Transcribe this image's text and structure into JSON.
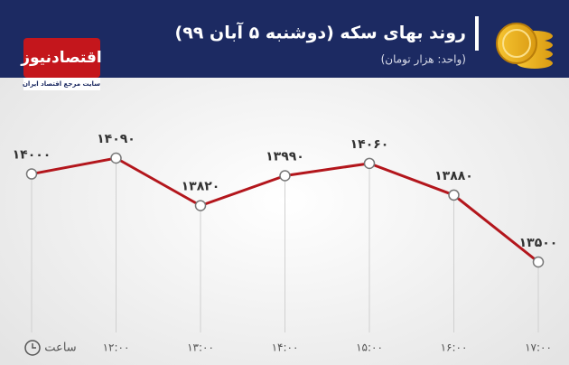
{
  "brand": {
    "name": "اقتصادنیوز",
    "tagline": "سایت مرجع اقتصاد ایران"
  },
  "chart_data": {
    "type": "line",
    "title": "روند بهای سکه (دوشنبه ۵ آبان ۹۹)",
    "subtitle": "(واحد: هزار تومان)",
    "x_label": "ساعت",
    "categories": [
      null,
      "۱۲:۰۰",
      "۱۳:۰۰",
      "۱۴:۰۰",
      "۱۵:۰۰",
      "۱۶:۰۰",
      "۱۷:۰۰"
    ],
    "values": [
      14000,
      14090,
      13820,
      13990,
      14060,
      13880,
      13500
    ],
    "value_labels": [
      "۱۴۰۰۰",
      "۱۴۰۹۰",
      "۱۳۸۲۰",
      "۱۳۹۹۰",
      "۱۴۰۶۰",
      "۱۳۸۸۰",
      "۱۳۵۰۰"
    ],
    "color": "#b3161c"
  }
}
